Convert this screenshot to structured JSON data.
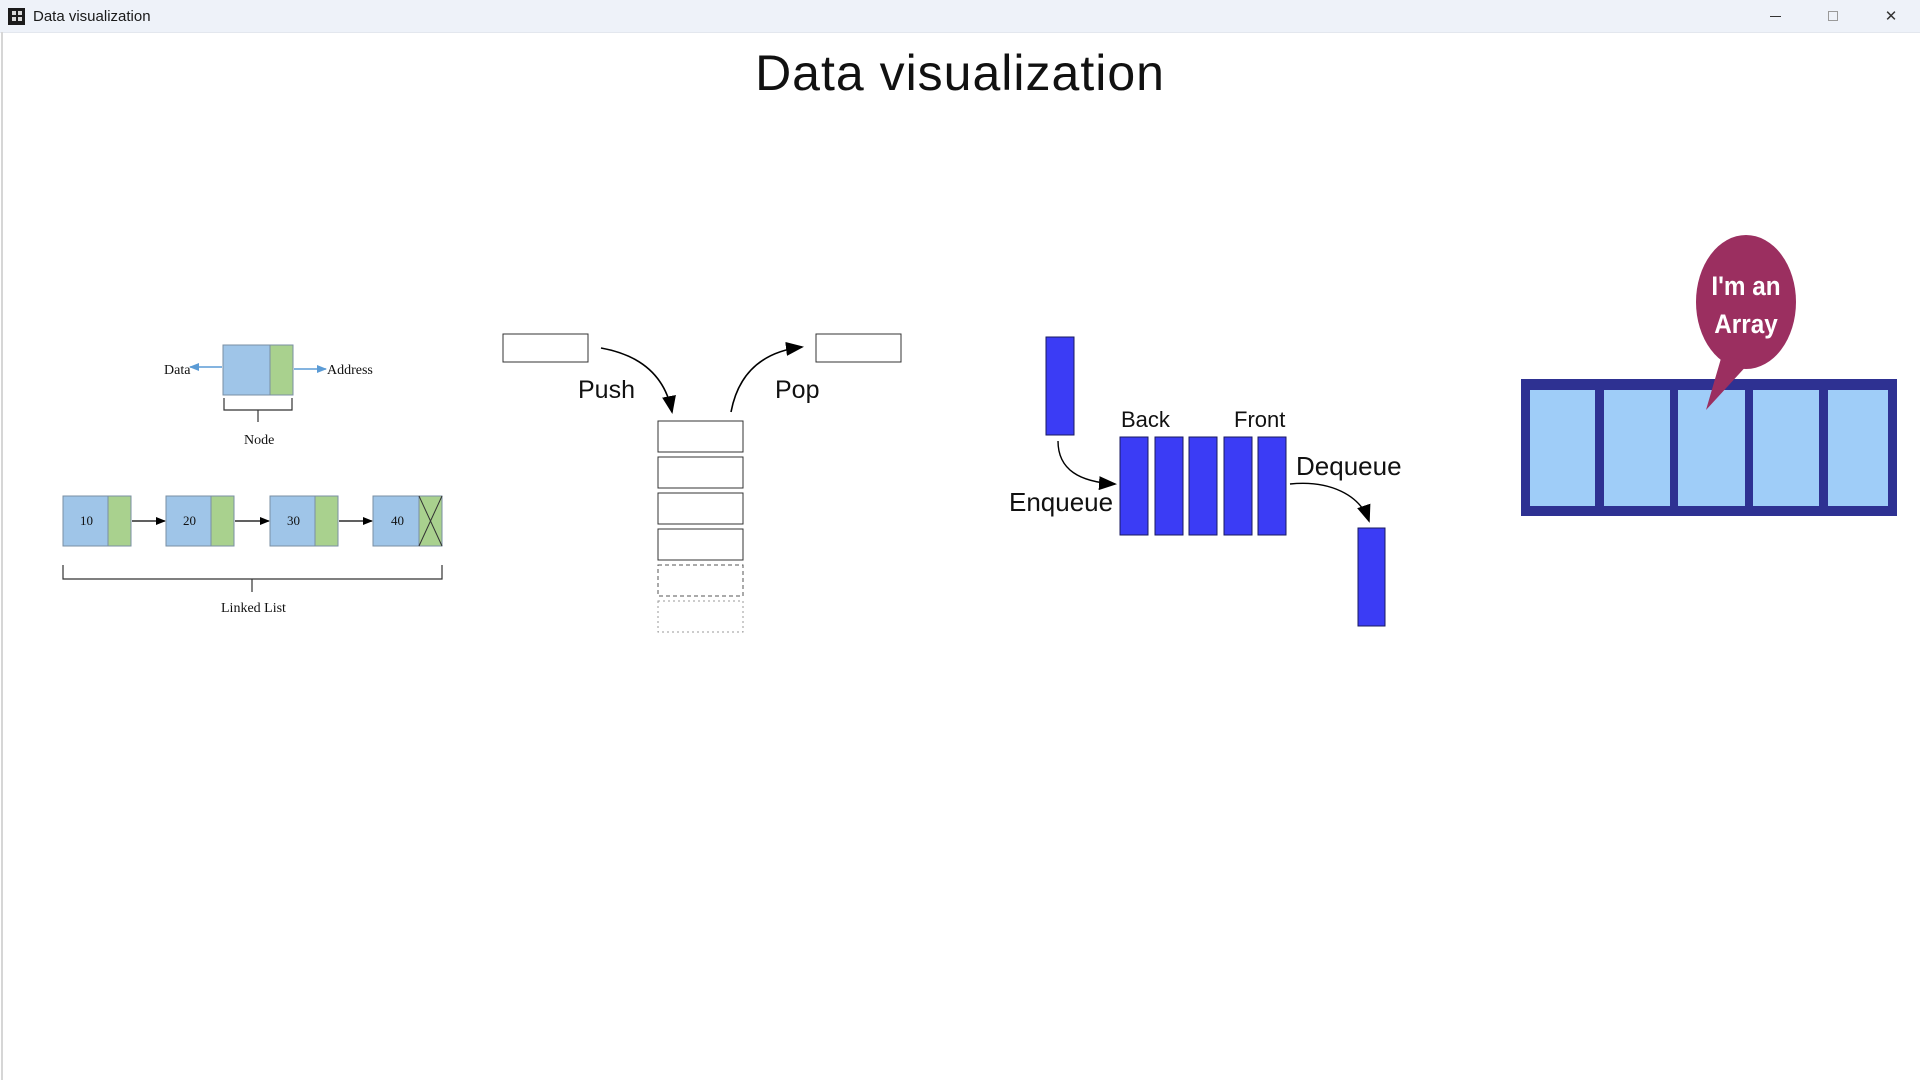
{
  "window": {
    "title": "Data visualization",
    "controls": {
      "minimize": "minimize",
      "maximize": "maximize",
      "close": "✕"
    }
  },
  "page": {
    "title": "Data visualization"
  },
  "linked_list": {
    "node_label": "Node",
    "data_label": "Data",
    "address_label": "Address",
    "values": [
      "10",
      "20",
      "30",
      "40"
    ],
    "list_label": "Linked List"
  },
  "stack": {
    "push_label": "Push",
    "pop_label": "Pop"
  },
  "queue": {
    "back_label": "Back",
    "front_label": "Front",
    "enqueue_label": "Enqueue",
    "dequeue_label": "Dequeue"
  },
  "array": {
    "bubble_line1": "I'm an",
    "bubble_line2": "Array",
    "cell_count": 5
  },
  "colors": {
    "node_data": "#9fc5e8",
    "node_address": "#a9d18e",
    "queue_blue": "#3b3cf5",
    "array_frame": "#2e3192",
    "array_cell": "#9fcdf8",
    "bubble": "#9b2f60",
    "arrow_blue": "#5b9bd5"
  }
}
